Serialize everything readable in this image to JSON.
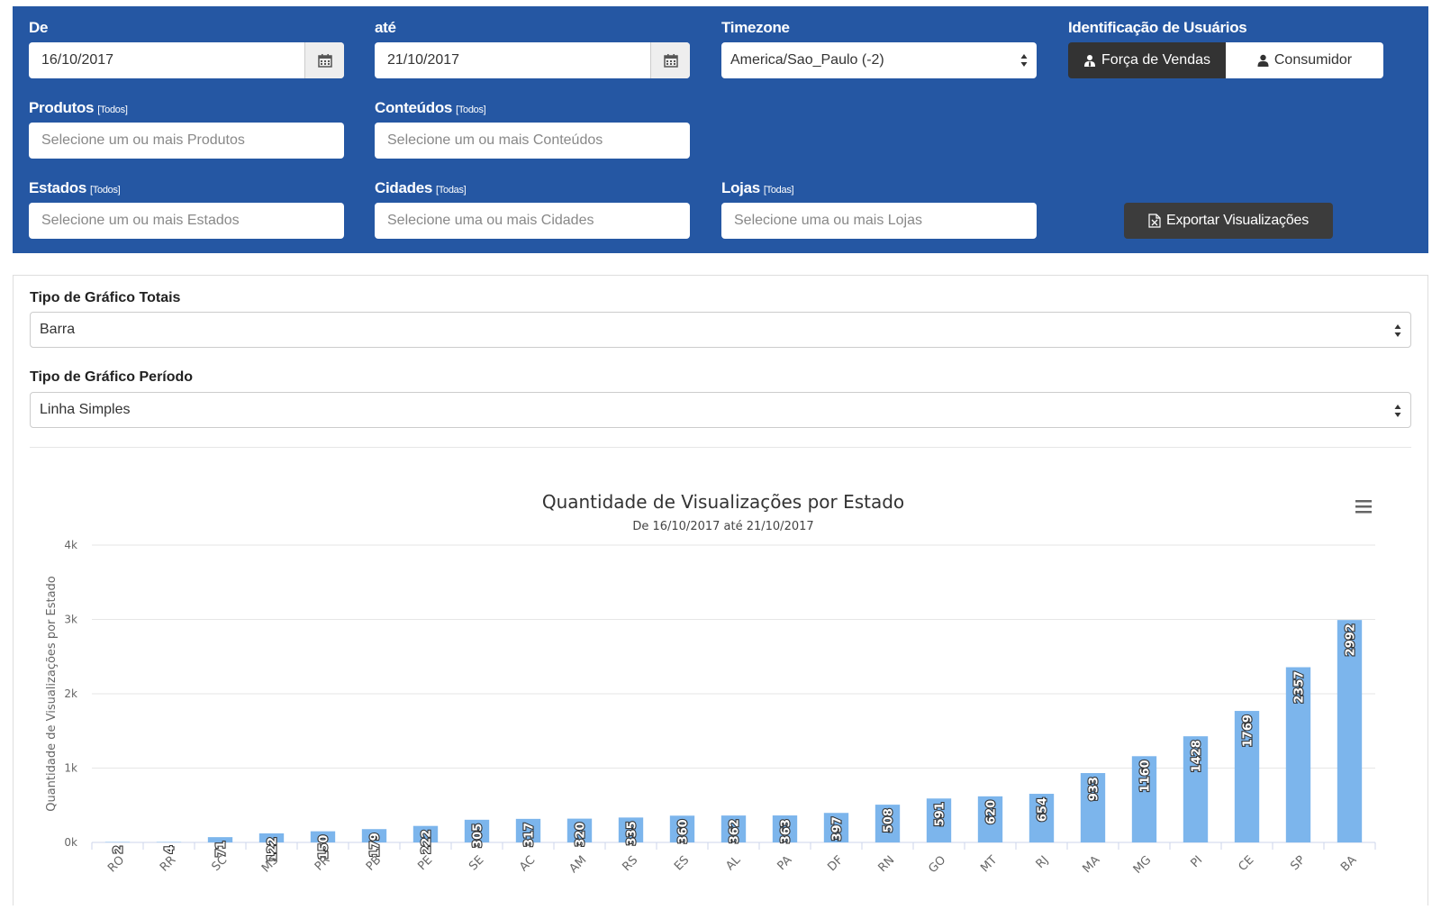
{
  "filters": {
    "date_from": {
      "label": "De",
      "value": "16/10/2017"
    },
    "date_to": {
      "label": "até",
      "value": "21/10/2017"
    },
    "timezone": {
      "label": "Timezone",
      "value": "America/Sao_Paulo (-2)"
    },
    "user_id": {
      "label": "Identificação de Usuários",
      "options": [
        "Força de Vendas",
        "Consumidor"
      ],
      "selected": "Força de Vendas"
    },
    "products": {
      "label": "Produtos",
      "hint": "[Todos]",
      "placeholder": "Selecione um ou mais Produtos"
    },
    "contents": {
      "label": "Conteúdos",
      "hint": "[Todos]",
      "placeholder": "Selecione um ou mais Conteúdos"
    },
    "states": {
      "label": "Estados",
      "hint": "[Todos]",
      "placeholder": "Selecione um ou mais Estados"
    },
    "cities": {
      "label": "Cidades",
      "hint": "[Todas]",
      "placeholder": "Selecione uma ou mais Cidades"
    },
    "stores": {
      "label": "Lojas",
      "hint": "[Todas]",
      "placeholder": "Selecione uma ou mais Lojas"
    },
    "export_label": "Exportar Visualizações"
  },
  "settings": {
    "totals_label": "Tipo de Gráfico Totais",
    "totals_value": "Barra",
    "period_label": "Tipo de Gráfico Período",
    "period_value": "Linha Simples"
  },
  "colors": {
    "header_bg": "#2557a3",
    "bar": "#7cb5ec",
    "active_segment": "#333333"
  },
  "icons": [
    "calendar-icon",
    "user-tie-icon",
    "user-icon",
    "excel-file-icon",
    "hamburger-menu-icon",
    "select-arrows-icon"
  ],
  "chart_data": {
    "type": "bar",
    "title": "Quantidade de Visualizações por Estado",
    "subtitle": "De 16/10/2017 até 21/10/2017",
    "ylabel": "Quantidade de Visualizações por Estado",
    "xlabel": "",
    "ylim": [
      0,
      4000
    ],
    "yticks": [
      "0k",
      "1k",
      "2k",
      "3k",
      "4k"
    ],
    "grid": true,
    "categories": [
      "RO",
      "RR",
      "SC",
      "MS",
      "PR",
      "PB",
      "PE",
      "SE",
      "AC",
      "AM",
      "RS",
      "ES",
      "AL",
      "PA",
      "DF",
      "RN",
      "GO",
      "MT",
      "RJ",
      "MA",
      "MG",
      "PI",
      "CE",
      "SP",
      "BA"
    ],
    "values": [
      2,
      4,
      71,
      122,
      150,
      179,
      222,
      305,
      317,
      320,
      335,
      360,
      362,
      363,
      397,
      508,
      591,
      620,
      654,
      933,
      1160,
      1428,
      1769,
      2357,
      2992
    ]
  }
}
